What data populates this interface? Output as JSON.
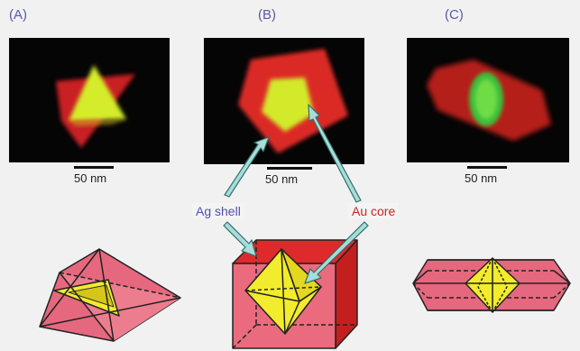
{
  "panels": [
    {
      "letter": "(A)",
      "scale_label": "50 nm"
    },
    {
      "letter": "(B)",
      "scale_label": "50 nm"
    },
    {
      "letter": "(C)",
      "scale_label": "50 nm"
    }
  ],
  "callouts": {
    "shell": "Ag shell",
    "core": "Au core"
  },
  "colors": {
    "shell_red": "#e0232a",
    "core_yellow": "#d7ec2a",
    "model_pink": "#e6687e",
    "model_yellow": "#f2ea2c",
    "arrow_teal": "#a9dcd8"
  }
}
